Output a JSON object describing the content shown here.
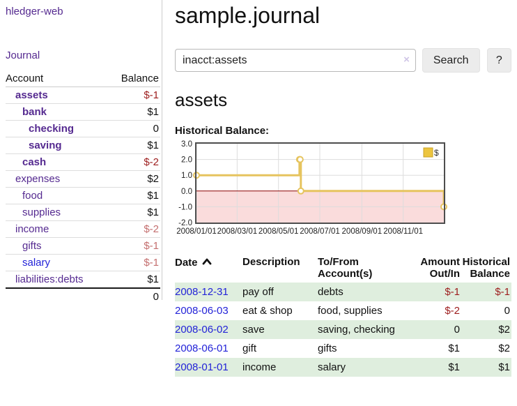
{
  "sidebar": {
    "brand": "hledger-web",
    "nav": {
      "journal": "Journal"
    },
    "accounts_header": {
      "account": "Account",
      "balance": "Balance"
    },
    "accounts": [
      {
        "name": "assets",
        "balance": "$-1",
        "depth": 1
      },
      {
        "name": "bank",
        "balance": "$1",
        "depth": 2
      },
      {
        "name": "checking",
        "balance": "0",
        "depth": 3
      },
      {
        "name": "saving",
        "balance": "$1",
        "depth": 3
      },
      {
        "name": "cash",
        "balance": "$-2",
        "depth": 2
      },
      {
        "name": "expenses",
        "balance": "$2",
        "depth": 1
      },
      {
        "name": "food",
        "balance": "$1",
        "depth": 2
      },
      {
        "name": "supplies",
        "balance": "$1",
        "depth": 2
      },
      {
        "name": "income",
        "balance": "$-2",
        "depth": 1
      },
      {
        "name": "gifts",
        "balance": "$-1",
        "depth": 2
      },
      {
        "name": "salary",
        "balance": "$-1",
        "depth": 2
      },
      {
        "name": "liabilities:debts",
        "balance": "$1",
        "depth": 1
      }
    ],
    "accounts_total": "0"
  },
  "header": {
    "title": "sample.journal",
    "search": {
      "value": "inacct:assets",
      "clear": "×",
      "button": "Search",
      "help": "?"
    }
  },
  "main": {
    "account_title": "assets",
    "chart_label": "Historical Balance:"
  },
  "chart_data": {
    "type": "line",
    "title": "Historical Balance:",
    "step": true,
    "legend": [
      "$"
    ],
    "legend_position": "top-right",
    "grid": true,
    "x_start": "2008-01-01",
    "x_end": "2008-12-31",
    "ylim": [
      -2,
      3
    ],
    "y_ticks": [
      "3.0",
      "2.0",
      "1.0",
      "0.0",
      "-1.0",
      "-2.0"
    ],
    "x_ticks": [
      {
        "date": "2008-01-01",
        "label": "2008/01/01"
      },
      {
        "date": "2008-03-01",
        "label": "2008/03/01"
      },
      {
        "date": "2008-05-01",
        "label": "2008/05/01"
      },
      {
        "date": "2008-07-01",
        "label": "2008/07/01"
      },
      {
        "date": "2008-09-01",
        "label": "2008/09/01"
      },
      {
        "date": "2008-11-01",
        "label": "2008/11/01"
      }
    ],
    "points": [
      {
        "date": "2008-01-01",
        "value": 1
      },
      {
        "date": "2008-06-01",
        "value": 2
      },
      {
        "date": "2008-06-02",
        "value": 2
      },
      {
        "date": "2008-06-03",
        "value": 0
      },
      {
        "date": "2008-12-31",
        "value": -1
      }
    ],
    "colors": {
      "line": "#e6c45e",
      "legend_fill": "#ecc53f",
      "legend_border": "#c9a227",
      "below_zero_fill": "#fadcdc",
      "zero_line": "#8b0000",
      "grid": "#dddddd",
      "border": "#4d4d4d"
    }
  },
  "register": {
    "columns": {
      "date": "Date",
      "description": "Description",
      "accounts": "To/From Account(s)",
      "amount": "Amount Out/In",
      "balance": "Historical Balance"
    },
    "rows": [
      {
        "date": "2008-12-31",
        "description": "pay off",
        "accounts": "debts",
        "amount": "$-1",
        "balance": "$-1"
      },
      {
        "date": "2008-06-03",
        "description": "eat & shop",
        "accounts": "food, supplies",
        "amount": "$-2",
        "balance": "0"
      },
      {
        "date": "2008-06-02",
        "description": "save",
        "accounts": "saving, checking",
        "amount": "0",
        "balance": "$2"
      },
      {
        "date": "2008-06-01",
        "description": "gift",
        "accounts": "gifts",
        "amount": "$1",
        "balance": "$2"
      },
      {
        "date": "2008-01-01",
        "description": "income",
        "accounts": "salary",
        "amount": "$1",
        "balance": "$1"
      }
    ]
  }
}
